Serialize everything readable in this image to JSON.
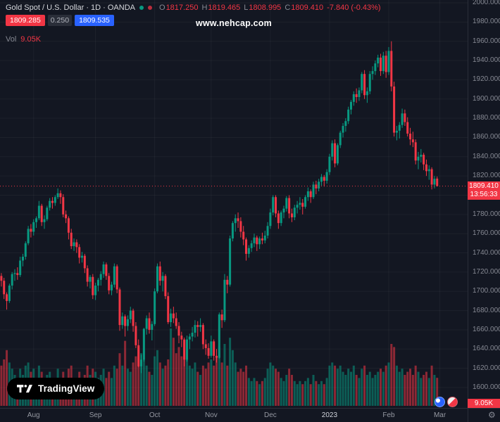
{
  "watermark": "www.nehcap.com",
  "legend": {
    "symbol_title": "Gold Spot / U.S. Dollar · 1D · OANDA",
    "ohlc": {
      "o_label": "O",
      "o": "1817.250",
      "h_label": "H",
      "h": "1819.465",
      "l_label": "L",
      "l": "1808.995",
      "c_label": "C",
      "c": "1809.410",
      "change": "-7.840 (-0.43%)"
    },
    "bid": "1809.285",
    "spread": "0.250",
    "ask": "1809.535",
    "vol_label": "Vol",
    "vol_value": "9.05K"
  },
  "price_axis": {
    "labels": [
      "2000.000",
      "1980.000",
      "1960.000",
      "1940.000",
      "1920.000",
      "1900.000",
      "1880.000",
      "1860.000",
      "1840.000",
      "1820.000",
      "1800.000",
      "1780.000",
      "1760.000",
      "1740.000",
      "1720.000",
      "1700.000",
      "1680.000",
      "1660.000",
      "1640.000",
      "1620.000",
      "1600.000"
    ],
    "current_price": "1809.410",
    "countdown": "13:56:33",
    "volume_badge": "9.05K"
  },
  "time_axis": {
    "labels": [
      {
        "text": "Aug",
        "index": 12
      },
      {
        "text": "Sep",
        "index": 35
      },
      {
        "text": "Oct",
        "index": 57
      },
      {
        "text": "Nov",
        "index": 78
      },
      {
        "text": "Dec",
        "index": 100
      },
      {
        "text": "2023",
        "index": 122,
        "year": true
      },
      {
        "text": "Feb",
        "index": 144
      },
      {
        "text": "Mar",
        "index": 163
      }
    ]
  },
  "logo": {
    "text": "TradingView"
  },
  "icons": {
    "gear": "⚙"
  },
  "colors": {
    "background": "#131722",
    "up": "#089981",
    "down": "#f23645",
    "up_vol": "rgba(8,153,129,0.55)",
    "down_vol": "rgba(242,54,69,0.55)",
    "grid": "rgba(255,255,255,0.045)",
    "axis_text": "#868993",
    "accent_blue": "#2962ff"
  },
  "chart_data": {
    "type": "candlestick",
    "title": "Gold Spot / U.S. Dollar",
    "exchange": "OANDA",
    "timeframe": "1D",
    "ylim": [
      1580,
      2003
    ],
    "current": {
      "open": 1817.25,
      "high": 1819.465,
      "low": 1808.995,
      "close": 1809.41,
      "change": -7.84,
      "change_pct": -0.43,
      "volume_k": 9.05
    },
    "columns": [
      "open",
      "high",
      "low",
      "close",
      "volume_k"
    ],
    "candles": [
      [
        1716,
        1719,
        1705,
        1711,
        13
      ],
      [
        1711,
        1714,
        1692,
        1697,
        15
      ],
      [
        1697,
        1699,
        1681,
        1690,
        18
      ],
      [
        1690,
        1708,
        1688,
        1706,
        14
      ],
      [
        1706,
        1720,
        1702,
        1718,
        12
      ],
      [
        1718,
        1723,
        1711,
        1719,
        10
      ],
      [
        1719,
        1725,
        1712,
        1717,
        9
      ],
      [
        1717,
        1736,
        1715,
        1732,
        12
      ],
      [
        1732,
        1739,
        1726,
        1736,
        10
      ],
      [
        1736,
        1752,
        1733,
        1750,
        13
      ],
      [
        1750,
        1768,
        1748,
        1765,
        14
      ],
      [
        1765,
        1770,
        1756,
        1762,
        11
      ],
      [
        1762,
        1775,
        1758,
        1772,
        12
      ],
      [
        1772,
        1778,
        1766,
        1776,
        9
      ],
      [
        1776,
        1794,
        1774,
        1789,
        13
      ],
      [
        1789,
        1791,
        1768,
        1772,
        11
      ],
      [
        1772,
        1779,
        1765,
        1775,
        8
      ],
      [
        1775,
        1789,
        1773,
        1787,
        10
      ],
      [
        1787,
        1797,
        1784,
        1794,
        11
      ],
      [
        1794,
        1798,
        1786,
        1792,
        8
      ],
      [
        1792,
        1800,
        1789,
        1798,
        9
      ],
      [
        1798,
        1807,
        1796,
        1802,
        12
      ],
      [
        1802,
        1805,
        1791,
        1798,
        9
      ],
      [
        1798,
        1801,
        1777,
        1780,
        11
      ],
      [
        1780,
        1784,
        1771,
        1776,
        9
      ],
      [
        1776,
        1778,
        1754,
        1761,
        12
      ],
      [
        1761,
        1765,
        1744,
        1747,
        13
      ],
      [
        1747,
        1755,
        1742,
        1751,
        9
      ],
      [
        1751,
        1754,
        1740,
        1746,
        8
      ],
      [
        1746,
        1749,
        1729,
        1735,
        11
      ],
      [
        1735,
        1741,
        1730,
        1737,
        8
      ],
      [
        1737,
        1739,
        1719,
        1724,
        10
      ],
      [
        1724,
        1727,
        1705,
        1710,
        13
      ],
      [
        1710,
        1717,
        1703,
        1715,
        10
      ],
      [
        1715,
        1718,
        1692,
        1696,
        12
      ],
      [
        1696,
        1709,
        1691,
        1706,
        11
      ],
      [
        1706,
        1714,
        1700,
        1712,
        9
      ],
      [
        1712,
        1721,
        1706,
        1718,
        10
      ],
      [
        1718,
        1731,
        1714,
        1728,
        12
      ],
      [
        1728,
        1730,
        1712,
        1716,
        9
      ],
      [
        1716,
        1719,
        1697,
        1701,
        11
      ],
      [
        1701,
        1710,
        1696,
        1707,
        9
      ],
      [
        1707,
        1729,
        1704,
        1726,
        13
      ],
      [
        1726,
        1728,
        1698,
        1702,
        12
      ],
      [
        1702,
        1704,
        1659,
        1665,
        17
      ],
      [
        1665,
        1678,
        1661,
        1674,
        13
      ],
      [
        1674,
        1676,
        1653,
        1664,
        21
      ],
      [
        1664,
        1675,
        1659,
        1671,
        12
      ],
      [
        1671,
        1684,
        1667,
        1680,
        11
      ],
      [
        1680,
        1682,
        1658,
        1664,
        14
      ],
      [
        1664,
        1668,
        1641,
        1644,
        16
      ],
      [
        1644,
        1650,
        1621,
        1622,
        19
      ],
      [
        1622,
        1634,
        1615,
        1629,
        17
      ],
      [
        1629,
        1662,
        1627,
        1661,
        15
      ],
      [
        1661,
        1675,
        1655,
        1672,
        13
      ],
      [
        1672,
        1678,
        1656,
        1660,
        11
      ],
      [
        1660,
        1669,
        1649,
        1666,
        10
      ],
      [
        1666,
        1703,
        1664,
        1700,
        16
      ],
      [
        1700,
        1729,
        1698,
        1726,
        18
      ],
      [
        1726,
        1731,
        1706,
        1711,
        14
      ],
      [
        1711,
        1720,
        1700,
        1716,
        12
      ],
      [
        1716,
        1718,
        1692,
        1695,
        13
      ],
      [
        1695,
        1699,
        1666,
        1668,
        15
      ],
      [
        1668,
        1682,
        1663,
        1677,
        25
      ],
      [
        1677,
        1684,
        1667,
        1672,
        22
      ],
      [
        1672,
        1678,
        1661,
        1664,
        17
      ],
      [
        1664,
        1668,
        1646,
        1654,
        19
      ],
      [
        1654,
        1658,
        1642,
        1650,
        16
      ],
      [
        1650,
        1652,
        1622,
        1629,
        21
      ],
      [
        1629,
        1654,
        1627,
        1650,
        18
      ],
      [
        1650,
        1656,
        1640,
        1653,
        13
      ],
      [
        1653,
        1663,
        1648,
        1657,
        12
      ],
      [
        1657,
        1670,
        1652,
        1665,
        14
      ],
      [
        1665,
        1669,
        1653,
        1663,
        11
      ],
      [
        1663,
        1672,
        1658,
        1665,
        10
      ],
      [
        1665,
        1667,
        1640,
        1645,
        13
      ],
      [
        1645,
        1650,
        1634,
        1641,
        12
      ],
      [
        1641,
        1646,
        1630,
        1633,
        14
      ],
      [
        1633,
        1654,
        1631,
        1648,
        15
      ],
      [
        1648,
        1650,
        1628,
        1633,
        13
      ],
      [
        1633,
        1640,
        1626,
        1631,
        16
      ],
      [
        1631,
        1678,
        1630,
        1676,
        19
      ],
      [
        1676,
        1681,
        1662,
        1670,
        14
      ],
      [
        1670,
        1718,
        1668,
        1712,
        20
      ],
      [
        1712,
        1716,
        1698,
        1707,
        13
      ],
      [
        1707,
        1758,
        1705,
        1755,
        22
      ],
      [
        1755,
        1773,
        1752,
        1771,
        18
      ],
      [
        1771,
        1780,
        1762,
        1776,
        14
      ],
      [
        1776,
        1782,
        1766,
        1773,
        11
      ],
      [
        1773,
        1777,
        1756,
        1762,
        12
      ],
      [
        1762,
        1768,
        1748,
        1754,
        11
      ],
      [
        1754,
        1756,
        1732,
        1739,
        13
      ],
      [
        1739,
        1748,
        1735,
        1745,
        9
      ],
      [
        1745,
        1753,
        1741,
        1750,
        8
      ],
      [
        1750,
        1760,
        1746,
        1756,
        9
      ],
      [
        1756,
        1758,
        1742,
        1749,
        8
      ],
      [
        1749,
        1757,
        1744,
        1755,
        7
      ],
      [
        1755,
        1761,
        1749,
        1753,
        8
      ],
      [
        1753,
        1763,
        1750,
        1758,
        9
      ],
      [
        1758,
        1772,
        1755,
        1768,
        12
      ],
      [
        1768,
        1786,
        1765,
        1782,
        14
      ],
      [
        1782,
        1800,
        1779,
        1798,
        13
      ],
      [
        1798,
        1800,
        1777,
        1781,
        12
      ],
      [
        1781,
        1784,
        1765,
        1771,
        11
      ],
      [
        1771,
        1784,
        1768,
        1782,
        9
      ],
      [
        1782,
        1789,
        1776,
        1786,
        8
      ],
      [
        1786,
        1799,
        1783,
        1797,
        10
      ],
      [
        1797,
        1800,
        1776,
        1781,
        12
      ],
      [
        1781,
        1786,
        1772,
        1777,
        10
      ],
      [
        1777,
        1790,
        1774,
        1787,
        8
      ],
      [
        1787,
        1794,
        1781,
        1790,
        7
      ],
      [
        1790,
        1798,
        1785,
        1792,
        8
      ],
      [
        1792,
        1796,
        1780,
        1788,
        7
      ],
      [
        1788,
        1800,
        1786,
        1798,
        8
      ],
      [
        1798,
        1808,
        1794,
        1804,
        9
      ],
      [
        1804,
        1806,
        1792,
        1798,
        7
      ],
      [
        1798,
        1814,
        1796,
        1811,
        10
      ],
      [
        1811,
        1815,
        1801,
        1807,
        8
      ],
      [
        1807,
        1817,
        1804,
        1814,
        7
      ],
      [
        1814,
        1822,
        1810,
        1819,
        8
      ],
      [
        1819,
        1821,
        1809,
        1815,
        7
      ],
      [
        1815,
        1827,
        1812,
        1824,
        9
      ],
      [
        1824,
        1843,
        1821,
        1840,
        13
      ],
      [
        1840,
        1857,
        1836,
        1854,
        14
      ],
      [
        1854,
        1858,
        1829,
        1833,
        13
      ],
      [
        1833,
        1854,
        1831,
        1852,
        12
      ],
      [
        1852,
        1867,
        1849,
        1865,
        13
      ],
      [
        1865,
        1875,
        1860,
        1872,
        11
      ],
      [
        1872,
        1880,
        1866,
        1877,
        10
      ],
      [
        1877,
        1892,
        1874,
        1889,
        12
      ],
      [
        1889,
        1899,
        1884,
        1897,
        11
      ],
      [
        1897,
        1908,
        1893,
        1905,
        13
      ],
      [
        1905,
        1911,
        1896,
        1902,
        10
      ],
      [
        1902,
        1912,
        1898,
        1909,
        9
      ],
      [
        1909,
        1928,
        1906,
        1926,
        12
      ],
      [
        1926,
        1930,
        1900,
        1904,
        13
      ],
      [
        1904,
        1912,
        1896,
        1908,
        10
      ],
      [
        1908,
        1929,
        1905,
        1926,
        11
      ],
      [
        1926,
        1934,
        1920,
        1929,
        9
      ],
      [
        1929,
        1940,
        1925,
        1937,
        10
      ],
      [
        1937,
        1946,
        1933,
        1943,
        11
      ],
      [
        1943,
        1947,
        1924,
        1929,
        12
      ],
      [
        1929,
        1949,
        1926,
        1945,
        11
      ],
      [
        1945,
        1950,
        1922,
        1928,
        13
      ],
      [
        1928,
        1954,
        1925,
        1950,
        14
      ],
      [
        1950,
        1960,
        1908,
        1913,
        20
      ],
      [
        1913,
        1918,
        1861,
        1865,
        19
      ],
      [
        1865,
        1872,
        1857,
        1867,
        13
      ],
      [
        1867,
        1876,
        1859,
        1873,
        11
      ],
      [
        1873,
        1890,
        1870,
        1885,
        12
      ],
      [
        1885,
        1889,
        1872,
        1876,
        10
      ],
      [
        1876,
        1881,
        1861,
        1864,
        11
      ],
      [
        1864,
        1870,
        1852,
        1858,
        12
      ],
      [
        1858,
        1866,
        1850,
        1855,
        10
      ],
      [
        1855,
        1858,
        1832,
        1836,
        13
      ],
      [
        1836,
        1845,
        1827,
        1840,
        11
      ],
      [
        1840,
        1848,
        1834,
        1842,
        9
      ],
      [
        1842,
        1844,
        1826,
        1832,
        10
      ],
      [
        1832,
        1837,
        1820,
        1825,
        11
      ],
      [
        1825,
        1831,
        1816,
        1827,
        9
      ],
      [
        1827,
        1829,
        1806,
        1811,
        13
      ],
      [
        1811,
        1820,
        1807,
        1817,
        10
      ],
      [
        1817.25,
        1819.465,
        1808.995,
        1809.41,
        9.05
      ]
    ]
  }
}
